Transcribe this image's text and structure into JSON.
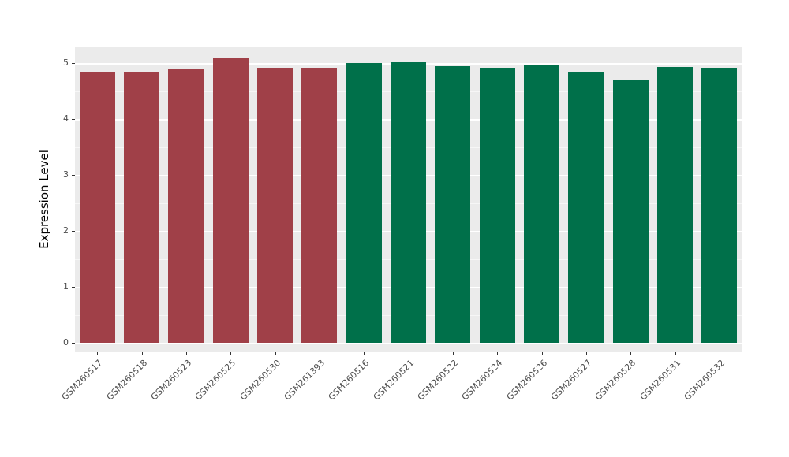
{
  "chart_data": {
    "type": "bar",
    "title": "",
    "xlabel": "",
    "ylabel": "Expression Level",
    "categories": [
      "GSM260517",
      "GSM260518",
      "GSM260523",
      "GSM260525",
      "GSM260530",
      "GSM261393",
      "GSM260516",
      "GSM260521",
      "GSM260522",
      "GSM260524",
      "GSM260526",
      "GSM260527",
      "GSM260528",
      "GSM260531",
      "GSM260532"
    ],
    "values": [
      4.84,
      4.84,
      4.9,
      5.09,
      4.91,
      4.91,
      5.0,
      5.02,
      4.94,
      4.91,
      4.97,
      4.83,
      4.69,
      4.93,
      4.91
    ],
    "bar_colors": [
      "#A04048",
      "#A04048",
      "#A04048",
      "#A04048",
      "#A04048",
      "#A04048",
      "#00704A",
      "#00704A",
      "#00704A",
      "#00704A",
      "#00704A",
      "#00704A",
      "#00704A",
      "#00704A",
      "#00704A"
    ],
    "group_colors": {
      "group1": "#A04048",
      "group2": "#00704A"
    },
    "ylim": [
      0,
      5.28
    ],
    "yticks": [
      0,
      1,
      2,
      3,
      4,
      5
    ],
    "grid": true,
    "legend": "none",
    "panel_background": "#EBEBEB",
    "grid_color": "#FFFFFF",
    "tick_label_color": "#4D4D4D",
    "axis_title_color": "#000000"
  }
}
